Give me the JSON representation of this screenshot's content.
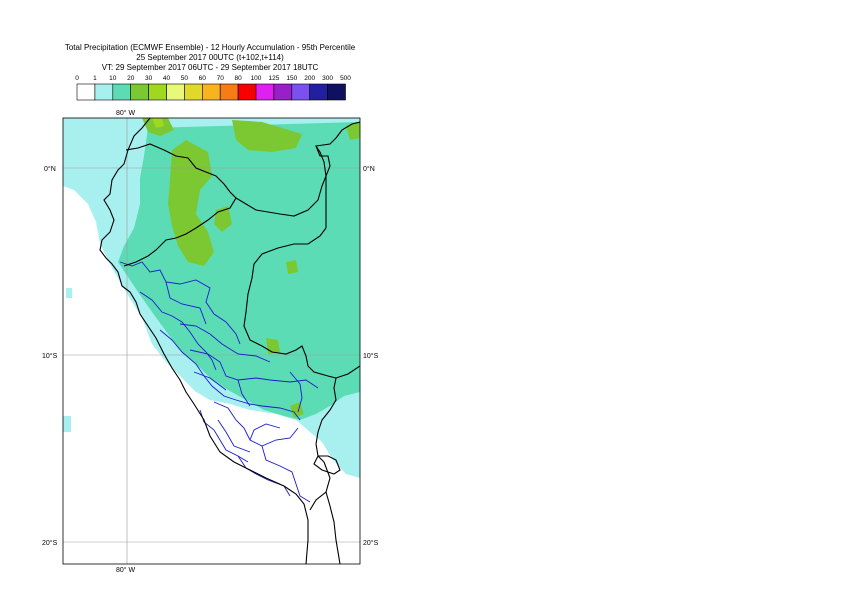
{
  "title": {
    "line1": "Total Precipitation (ECMWF Ensemble) - 12 Hourly Accumulation - 95th Percentile",
    "line2": "25 September 2017 00UTC (t+102,t+114)",
    "line3": "VT: 29 September 2017 06UTC - 29 September 2017 18UTC"
  },
  "legend": {
    "thresholds": [
      "0",
      "1",
      "10",
      "20",
      "30",
      "40",
      "50",
      "60",
      "70",
      "80",
      "100",
      "125",
      "150",
      "200",
      "300",
      "500"
    ],
    "colors": [
      "#ffffff",
      "#a8f0f0",
      "#5cdcb4",
      "#7cc832",
      "#a0d820",
      "#e8f878",
      "#e0d82a",
      "#f8b41c",
      "#f87c14",
      "#f80000",
      "#e020f0",
      "#9820c8",
      "#7a50f0",
      "#2020a0",
      "#101060"
    ]
  },
  "map": {
    "lon_labels": {
      "top": "80° W",
      "bottom": "80° W"
    },
    "lat_labels": {
      "left": [
        "0°N",
        "10°S",
        "20°S"
      ],
      "right": [
        "0°N",
        "10°S",
        "20°S"
      ]
    },
    "ocean_color": "#ffffff",
    "border_color": "#000000",
    "admin_border_color": "#1a1ad0"
  }
}
